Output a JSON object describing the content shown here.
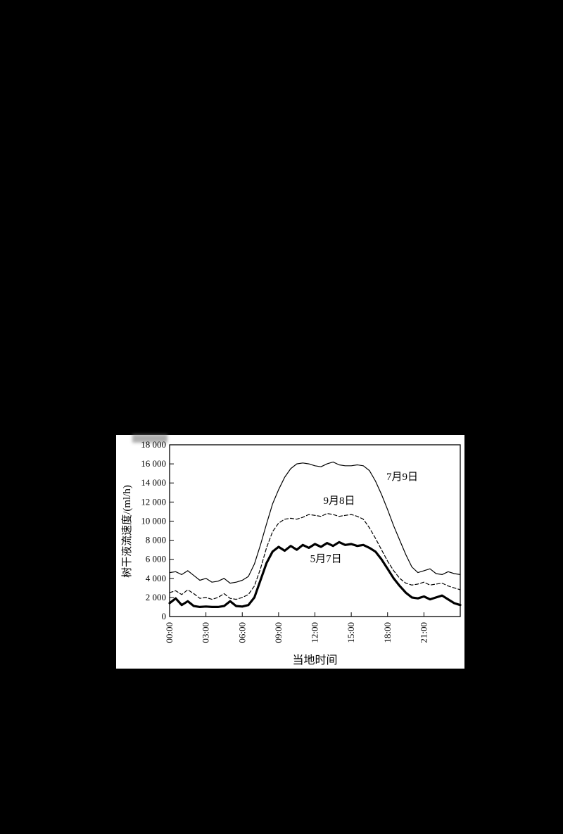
{
  "page": {
    "background_color": "#000000",
    "panel_color": "#ffffff"
  },
  "chart_data": {
    "type": "line",
    "title": "",
    "xlabel": "当地时间",
    "ylabel": "树干液流速度/(ml/h)",
    "xlim": [
      0,
      24
    ],
    "ylim": [
      0,
      18000
    ],
    "grid": false,
    "legend_position": "inline-labels",
    "x_ticks": [
      "00:00",
      "03:00",
      "06:00",
      "09:00",
      "12:00",
      "15:00",
      "18:00",
      "21:00"
    ],
    "x_tick_hours": [
      0,
      3,
      6,
      9,
      12,
      15,
      18,
      21
    ],
    "y_ticks": [
      0,
      2000,
      4000,
      6000,
      8000,
      10000,
      12000,
      14000,
      16000,
      18000
    ],
    "y_tick_labels": [
      "0",
      "2 000",
      "4 000",
      "6 000",
      "8 000",
      "10 000",
      "12 000",
      "14 000",
      "16 000",
      "18 000"
    ],
    "x_start": 0,
    "x_step": 0.5,
    "series": [
      {
        "name": "7月9日",
        "style": "solid-thin",
        "color": "#000000",
        "label_pos": {
          "x": 17.9,
          "y": 14300
        },
        "values": [
          4600,
          4700,
          4400,
          4800,
          4300,
          3800,
          4000,
          3600,
          3700,
          4000,
          3500,
          3600,
          3800,
          4200,
          5500,
          7500,
          9700,
          11800,
          13300,
          14600,
          15500,
          16000,
          16100,
          16000,
          15800,
          15700,
          16000,
          16200,
          15900,
          15800,
          15800,
          15900,
          15800,
          15300,
          14200,
          12800,
          11200,
          9500,
          8000,
          6500,
          5200,
          4600,
          4800,
          5000,
          4500,
          4400,
          4700,
          4500,
          4400
        ]
      },
      {
        "name": "9月8日",
        "style": "dashed",
        "color": "#000000",
        "label_pos": {
          "x": 12.7,
          "y": 11800
        },
        "values": [
          2500,
          2700,
          2300,
          2800,
          2400,
          1900,
          2000,
          1800,
          2000,
          2400,
          1900,
          1800,
          2000,
          2300,
          3200,
          5000,
          7200,
          8900,
          9800,
          10200,
          10300,
          10200,
          10400,
          10700,
          10600,
          10500,
          10800,
          10700,
          10500,
          10600,
          10700,
          10500,
          10200,
          9300,
          8200,
          7000,
          5800,
          4800,
          4000,
          3500,
          3300,
          3400,
          3600,
          3300,
          3400,
          3500,
          3200,
          3000,
          2800
        ]
      },
      {
        "name": "5月7日",
        "style": "solid-thick",
        "color": "#000000",
        "label_pos": {
          "x": 11.6,
          "y": 5700
        },
        "values": [
          1400,
          1900,
          1200,
          1600,
          1100,
          1000,
          1050,
          1000,
          1000,
          1100,
          1600,
          1100,
          1050,
          1200,
          2000,
          3800,
          5600,
          6800,
          7300,
          6900,
          7400,
          7000,
          7500,
          7200,
          7600,
          7300,
          7700,
          7400,
          7800,
          7500,
          7600,
          7400,
          7500,
          7200,
          6800,
          6000,
          5000,
          4000,
          3200,
          2500,
          2000,
          1900,
          2100,
          1800,
          2000,
          2200,
          1800,
          1400,
          1200
        ]
      }
    ]
  }
}
